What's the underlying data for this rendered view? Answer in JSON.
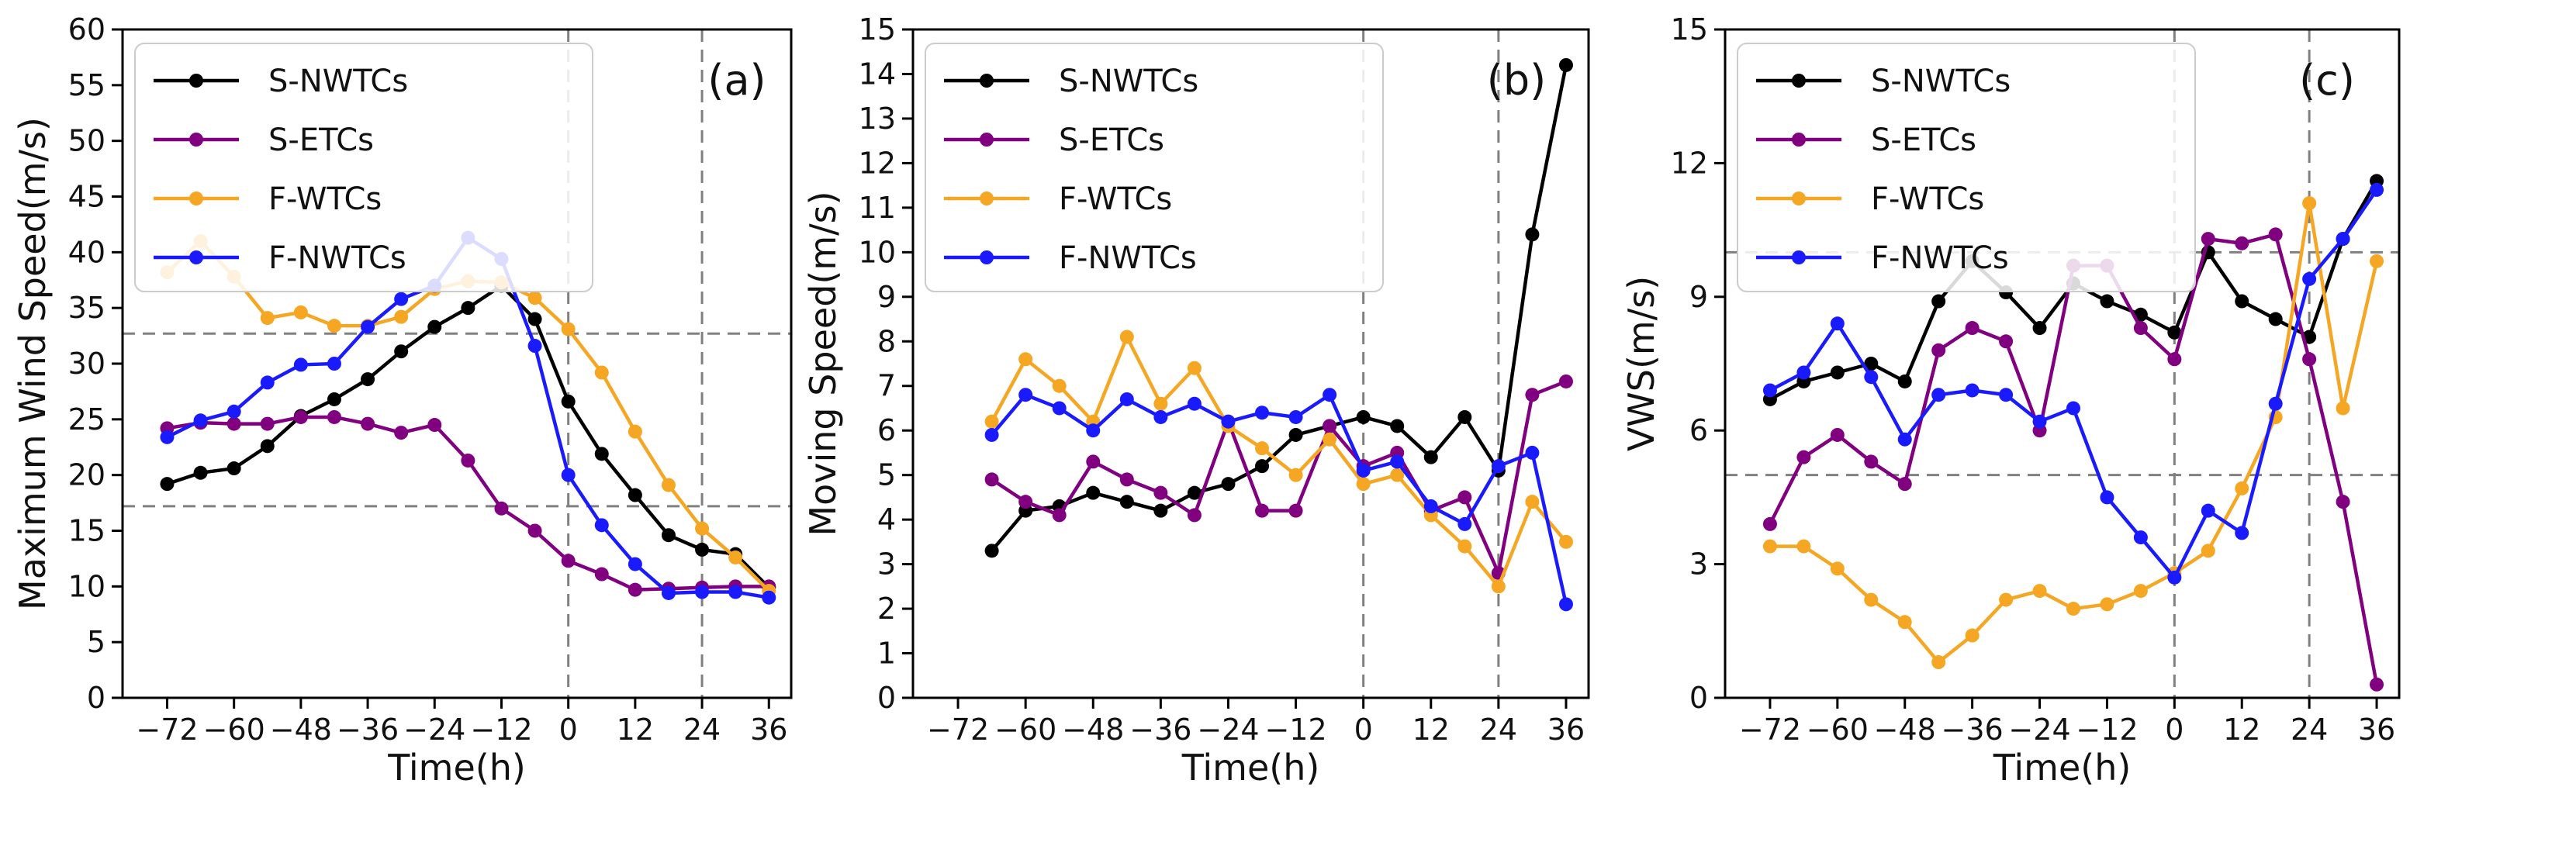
{
  "chart_data": [
    {
      "type": "line",
      "panel_label": "(a)",
      "xlabel": "Time(h)",
      "ylabel": "Maximum Wind Speed(m/s)",
      "xlim": [
        -80,
        40
      ],
      "ylim": [
        0,
        60
      ],
      "xticks": [
        -72,
        -60,
        -48,
        -36,
        -24,
        -12,
        0,
        12,
        24,
        36
      ],
      "xtick_labels": [
        "−72",
        "−60",
        "−48",
        "−36",
        "−24",
        "−12",
        "0",
        "12",
        "24",
        "36"
      ],
      "yticks": [
        0,
        5,
        10,
        15,
        20,
        25,
        30,
        35,
        40,
        45,
        50,
        55,
        60
      ],
      "ytick_labels": [
        "0",
        "5",
        "10",
        "15",
        "20",
        "25",
        "30",
        "35",
        "40",
        "45",
        "50",
        "55",
        "60"
      ],
      "hlines": [
        17.2,
        32.7
      ],
      "vlines": [
        0,
        24
      ],
      "legend": "top-left",
      "x": [
        -72,
        -66,
        -60,
        -54,
        -48,
        -42,
        -36,
        -30,
        -24,
        -18,
        -12,
        -6,
        0,
        6,
        12,
        18,
        24,
        30,
        36
      ],
      "series": [
        {
          "name": "S-NWTCs",
          "color": "#000000",
          "values": [
            19.2,
            20.2,
            20.6,
            22.6,
            25.3,
            26.8,
            28.6,
            31.1,
            33.3,
            35.0,
            37.0,
            34.0,
            26.6,
            21.9,
            18.2,
            14.6,
            13.3,
            12.9,
            9.9
          ]
        },
        {
          "name": "S-ETCs",
          "color": "#800080",
          "values": [
            24.2,
            24.7,
            24.6,
            24.6,
            25.2,
            25.2,
            24.6,
            23.8,
            24.5,
            21.3,
            17.0,
            15.0,
            12.3,
            11.1,
            9.7,
            9.8,
            9.9,
            10.0,
            10.0
          ]
        },
        {
          "name": "F-WTCs",
          "color": "#f5a623",
          "values": [
            38.2,
            41.0,
            37.8,
            34.1,
            34.6,
            33.4,
            33.4,
            34.2,
            36.7,
            37.4,
            37.3,
            35.9,
            33.1,
            29.2,
            23.9,
            19.1,
            15.2,
            12.6,
            9.6
          ]
        },
        {
          "name": "F-NWTCs",
          "color": "#1a1aff",
          "values": [
            23.4,
            24.9,
            25.7,
            28.3,
            29.9,
            30.0,
            33.3,
            35.8,
            37.0,
            41.3,
            39.4,
            31.6,
            20.0,
            15.5,
            12.0,
            9.4,
            9.5,
            9.5,
            9.0
          ]
        }
      ]
    },
    {
      "type": "line",
      "panel_label": "(b)",
      "xlabel": "Time(h)",
      "ylabel": "Moving Speed(m/s)",
      "xlim": [
        -80,
        40
      ],
      "ylim": [
        0,
        15
      ],
      "xticks": [
        -72,
        -60,
        -48,
        -36,
        -24,
        -12,
        0,
        12,
        24,
        36
      ],
      "xtick_labels": [
        "−72",
        "−60",
        "−48",
        "−36",
        "−24",
        "−12",
        "0",
        "12",
        "24",
        "36"
      ],
      "yticks": [
        0,
        1,
        2,
        3,
        4,
        5,
        6,
        7,
        8,
        9,
        10,
        11,
        12,
        13,
        14,
        15
      ],
      "ytick_labels": [
        "0",
        "1",
        "2",
        "3",
        "4",
        "5",
        "6",
        "7",
        "8",
        "9",
        "10",
        "11",
        "12",
        "13",
        "14",
        "15"
      ],
      "hlines": [],
      "vlines": [
        0,
        24
      ],
      "legend": "top-left",
      "x": [
        -66,
        -60,
        -54,
        -48,
        -42,
        -36,
        -30,
        -24,
        -18,
        -12,
        -6,
        0,
        6,
        12,
        18,
        24,
        30,
        36
      ],
      "series": [
        {
          "name": "S-NWTCs",
          "color": "#000000",
          "values": [
            3.3,
            4.2,
            4.3,
            4.6,
            4.4,
            4.2,
            4.6,
            4.8,
            5.2,
            5.9,
            6.1,
            6.3,
            6.1,
            5.4,
            6.3,
            5.1,
            10.4,
            14.2
          ]
        },
        {
          "name": "S-ETCs",
          "color": "#800080",
          "values": [
            4.9,
            4.4,
            4.1,
            5.3,
            4.9,
            4.6,
            4.1,
            6.2,
            4.2,
            4.2,
            6.1,
            5.2,
            5.5,
            4.2,
            4.5,
            2.8,
            6.8,
            7.1
          ]
        },
        {
          "name": "F-WTCs",
          "color": "#f5a623",
          "values": [
            6.2,
            7.6,
            7.0,
            6.2,
            8.1,
            6.6,
            7.4,
            6.1,
            5.6,
            5.0,
            5.8,
            4.8,
            5.0,
            4.1,
            3.4,
            2.5,
            4.4,
            3.5
          ]
        },
        {
          "name": "F-NWTCs",
          "color": "#1a1aff",
          "values": [
            5.9,
            6.8,
            6.5,
            6.0,
            6.7,
            6.3,
            6.6,
            6.2,
            6.4,
            6.3,
            6.8,
            5.1,
            5.3,
            4.3,
            3.9,
            5.2,
            5.5,
            2.1
          ]
        }
      ]
    },
    {
      "type": "line",
      "panel_label": "(c)",
      "xlabel": "Time(h)",
      "ylabel": "VWS(m/s)",
      "xlim": [
        -80,
        40
      ],
      "ylim": [
        0,
        15
      ],
      "xticks": [
        -72,
        -60,
        -48,
        -36,
        -24,
        -12,
        0,
        12,
        24,
        36
      ],
      "xtick_labels": [
        "−72",
        "−60",
        "−48",
        "−36",
        "−24",
        "−12",
        "0",
        "12",
        "24",
        "36"
      ],
      "yticks": [
        0,
        3,
        6,
        9,
        12,
        15
      ],
      "ytick_labels": [
        "0",
        "3",
        "6",
        "9",
        "12",
        "15"
      ],
      "hlines": [
        5,
        10
      ],
      "vlines": [
        0,
        24
      ],
      "legend": "top-left",
      "x": [
        -72,
        -66,
        -60,
        -54,
        -48,
        -42,
        -36,
        -30,
        -24,
        -18,
        -12,
        -6,
        0,
        6,
        12,
        18,
        24,
        30,
        36
      ],
      "series": [
        {
          "name": "S-NWTCs",
          "color": "#000000",
          "values": [
            6.7,
            7.1,
            7.3,
            7.5,
            7.1,
            8.9,
            9.8,
            9.1,
            8.3,
            9.3,
            8.9,
            8.6,
            8.2,
            10.0,
            8.9,
            8.5,
            8.1,
            10.3,
            11.6
          ]
        },
        {
          "name": "S-ETCs",
          "color": "#800080",
          "values": [
            3.9,
            5.4,
            5.9,
            5.3,
            4.8,
            7.8,
            8.3,
            8.0,
            6.0,
            9.7,
            9.7,
            8.3,
            7.6,
            10.3,
            10.2,
            10.4,
            7.6,
            4.4,
            0.3
          ]
        },
        {
          "name": "F-WTCs",
          "color": "#f5a623",
          "values": [
            3.4,
            3.4,
            2.9,
            2.2,
            1.7,
            0.8,
            1.4,
            2.2,
            2.4,
            2.0,
            2.1,
            2.4,
            2.8,
            3.3,
            4.7,
            6.3,
            11.1,
            6.5,
            9.8
          ]
        },
        {
          "name": "F-NWTCs",
          "color": "#1a1aff",
          "values": [
            6.9,
            7.3,
            8.4,
            7.2,
            5.8,
            6.8,
            6.9,
            6.8,
            6.2,
            6.5,
            4.5,
            3.6,
            2.7,
            4.2,
            3.7,
            6.6,
            9.4,
            10.3,
            11.4
          ]
        }
      ]
    }
  ]
}
